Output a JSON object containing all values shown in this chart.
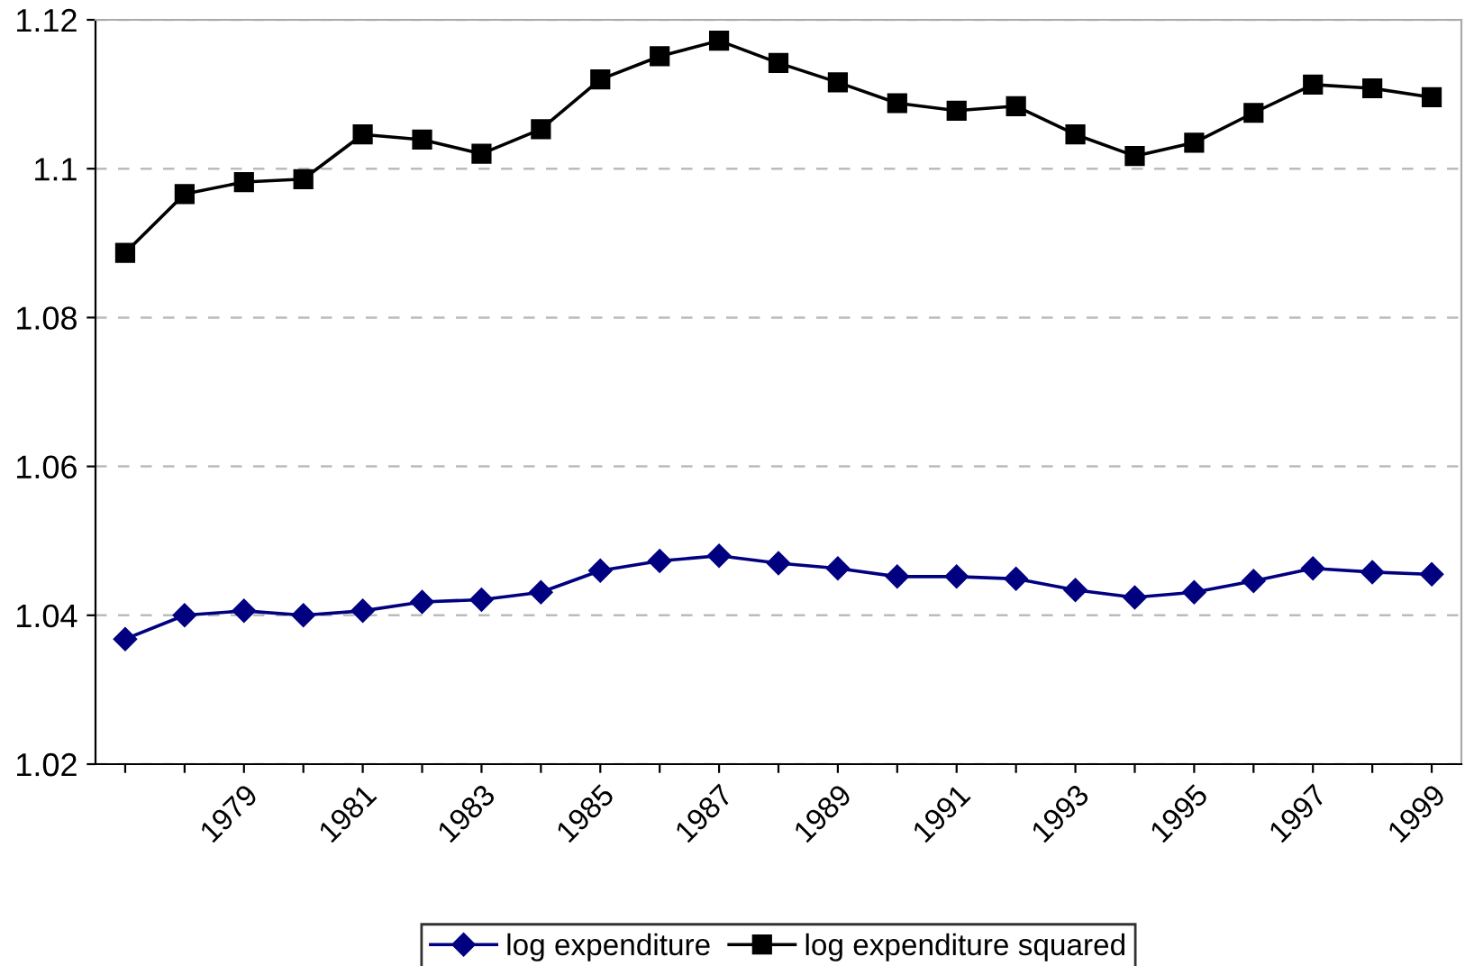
{
  "chart_data": {
    "type": "line",
    "categories": [
      null,
      null,
      "1979",
      null,
      "1981",
      null,
      "1983",
      null,
      "1985",
      null,
      "1987",
      null,
      "1989",
      null,
      "1991",
      null,
      "1993",
      null,
      "1995",
      null,
      "1997",
      null,
      "1999"
    ],
    "series": [
      {
        "name": "log expenditure",
        "color": "#000080",
        "marker": "diamond",
        "values": [
          1.0368,
          1.04,
          1.0406,
          1.04,
          1.0406,
          1.0418,
          1.0421,
          1.0431,
          1.046,
          1.0473,
          1.048,
          1.047,
          1.0463,
          1.0452,
          1.0452,
          1.0449,
          1.0434,
          1.0424,
          1.0431,
          1.0446,
          1.0463,
          1.0458,
          1.0455
        ]
      },
      {
        "name": "log expenditure squared",
        "color": "#000000",
        "marker": "square",
        "values": [
          1.0887,
          1.0966,
          1.0982,
          1.0986,
          1.1046,
          1.1039,
          1.102,
          1.1053,
          1.112,
          1.1151,
          1.1172,
          1.1142,
          1.1116,
          1.1088,
          1.1078,
          1.1084,
          1.1046,
          1.1017,
          1.1035,
          1.1075,
          1.1113,
          1.1108,
          1.1096
        ]
      }
    ],
    "ylim": [
      1.02,
      1.12
    ],
    "yticks": [
      {
        "value": 1.02,
        "label": "1.02"
      },
      {
        "value": 1.04,
        "label": "1.04"
      },
      {
        "value": 1.06,
        "label": "1.06"
      },
      {
        "value": 1.08,
        "label": "1.08"
      },
      {
        "value": 1.1,
        "label": "1.1"
      },
      {
        "value": 1.12,
        "label": "1.12"
      }
    ],
    "grid": "y",
    "legend": "bottom",
    "line_style": "solid"
  }
}
